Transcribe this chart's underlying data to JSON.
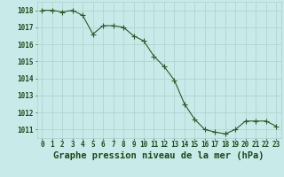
{
  "x": [
    0,
    1,
    2,
    3,
    4,
    5,
    6,
    7,
    8,
    9,
    10,
    11,
    12,
    13,
    14,
    15,
    16,
    17,
    18,
    19,
    20,
    21,
    22,
    23
  ],
  "y": [
    1018.0,
    1018.0,
    1017.9,
    1018.0,
    1017.7,
    1016.6,
    1017.1,
    1017.1,
    1017.0,
    1016.5,
    1016.2,
    1015.3,
    1014.7,
    1013.9,
    1012.5,
    1011.6,
    1011.0,
    1010.85,
    1010.75,
    1011.0,
    1011.5,
    1011.5,
    1011.5,
    1011.2
  ],
  "line_color": "#2d5a27",
  "marker_color": "#2d5a27",
  "bg_color": "#c8eae8",
  "grid_color": "#b0d0cc",
  "text_color": "#1a4a18",
  "xlabel": "Graphe pression niveau de la mer (hPa)",
  "ylim_min": 1010.5,
  "ylim_max": 1018.5,
  "yticks": [
    1011,
    1012,
    1013,
    1014,
    1015,
    1016,
    1017,
    1018
  ],
  "xticks": [
    0,
    1,
    2,
    3,
    4,
    5,
    6,
    7,
    8,
    9,
    10,
    11,
    12,
    13,
    14,
    15,
    16,
    17,
    18,
    19,
    20,
    21,
    22,
    23
  ],
  "tick_label_fontsize": 5.5,
  "xlabel_fontsize": 7.5,
  "linewidth": 0.8,
  "markersize": 2.2
}
